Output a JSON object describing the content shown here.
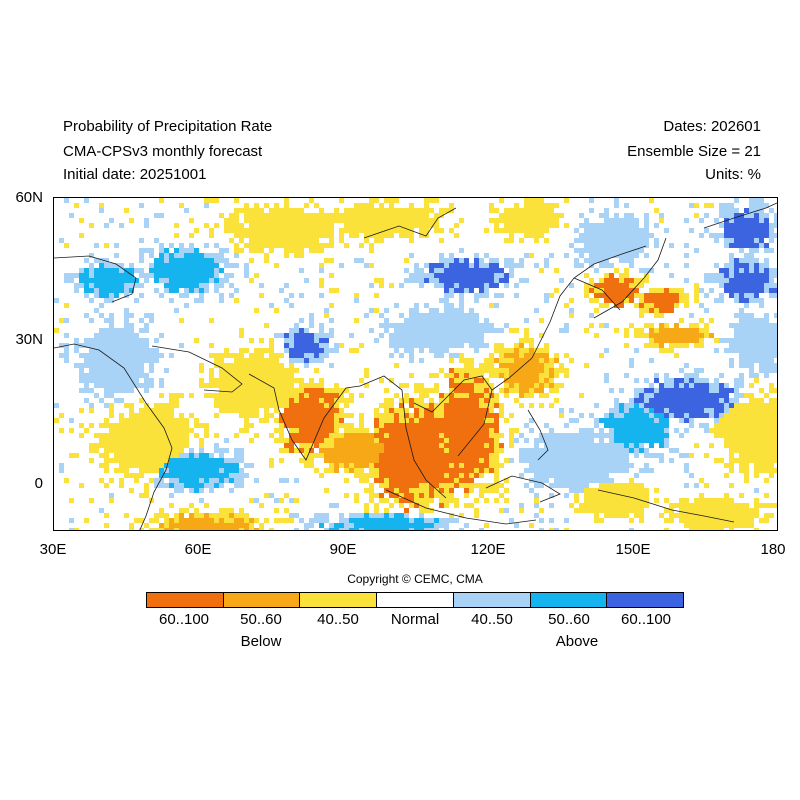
{
  "header": {
    "title": "Probability of Precipitation Rate",
    "model": "CMA-CPSv3 monthly forecast",
    "initial_date": "Initial date: 20251001",
    "dates": "Dates: 202601",
    "ensemble": "Ensemble Size = 21",
    "units": "Units: %"
  },
  "map": {
    "lat_labels": [
      "60N",
      "30N",
      "0"
    ],
    "lon_labels": [
      "30E",
      "60E",
      "90E",
      "120E",
      "150E",
      "180"
    ],
    "lon_range": [
      30,
      180
    ],
    "lat_range": [
      -10,
      60
    ]
  },
  "copyright": "Copyright © CEMC, CMA",
  "legend": {
    "categories": [
      {
        "label": "60..100",
        "color": "#f07010"
      },
      {
        "label": "50..60",
        "color": "#f7a816"
      },
      {
        "label": "40..50",
        "color": "#fbe23a"
      },
      {
        "label": "Normal",
        "color": "#ffffff"
      },
      {
        "label": "40..50",
        "color": "#a8d2f6"
      },
      {
        "label": "50..60",
        "color": "#16b4ee"
      },
      {
        "label": "60..100",
        "color": "#3c64e0"
      }
    ],
    "below_label": "Below",
    "above_label": "Above"
  }
}
